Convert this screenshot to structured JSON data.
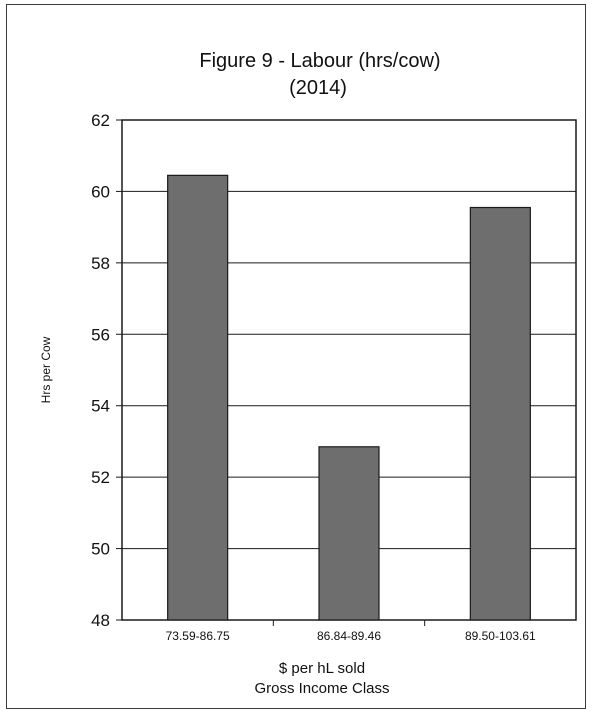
{
  "chart_data": {
    "type": "bar",
    "title": "Figure 9 - Labour (hrs/cow)",
    "subtitle": "(2014)",
    "categories": [
      "73.59-86.75",
      "86.84-89.46",
      "89.50-103.61"
    ],
    "values": [
      60.45,
      52.85,
      59.55
    ],
    "xlabel": "$ per hL sold",
    "xlabel2": "Gross Income Class",
    "ylabel": "Hrs per Cow",
    "ylim": [
      48,
      62
    ],
    "yticks": [
      48,
      50,
      52,
      54,
      56,
      58,
      60,
      62
    ],
    "grid": true,
    "legend": "none",
    "bar_color": "#6e6e6e"
  }
}
